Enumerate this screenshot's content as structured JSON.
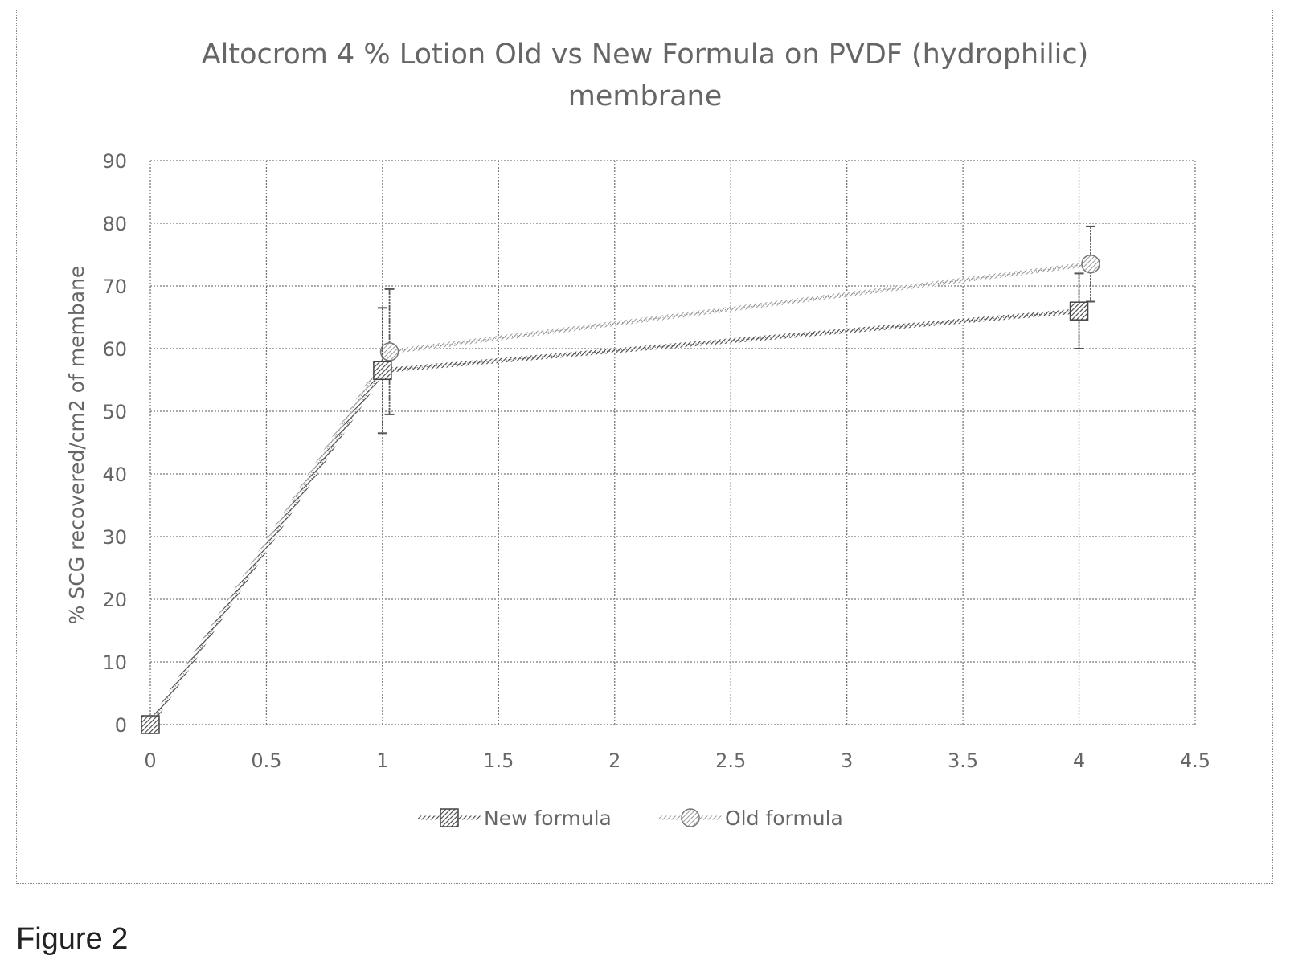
{
  "figure_caption": "Figure 2",
  "chart_data": {
    "type": "line",
    "title_line1": "Altocrom 4 % Lotion Old vs New Formula on PVDF (hydrophilic)",
    "title_line2": "membrane",
    "xlabel": "",
    "ylabel": "% SCG recovered/cm2 of membane",
    "xlim": [
      0,
      4.5
    ],
    "ylim": [
      0,
      90
    ],
    "x_ticks": [
      "0",
      "0.5",
      "1",
      "1.5",
      "2",
      "2.5",
      "3",
      "3.5",
      "4",
      "4.5"
    ],
    "y_ticks": [
      "0",
      "10",
      "20",
      "30",
      "40",
      "50",
      "60",
      "70",
      "80",
      "90"
    ],
    "grid": true,
    "legend_position": "bottom",
    "series": [
      {
        "name": "New formula",
        "marker": "square",
        "color": "#555555",
        "points": [
          {
            "x": 0,
            "y": 0
          },
          {
            "x": 1,
            "y": 56.5,
            "err": 10
          },
          {
            "x": 4,
            "y": 66,
            "err": 6
          }
        ]
      },
      {
        "name": "Old formula",
        "marker": "circle",
        "color": "#888888",
        "points": [
          {
            "x": 0,
            "y": 0
          },
          {
            "x": 1.03,
            "y": 59.5,
            "err": 10
          },
          {
            "x": 4.05,
            "y": 73.5,
            "err": 6
          }
        ]
      }
    ]
  }
}
